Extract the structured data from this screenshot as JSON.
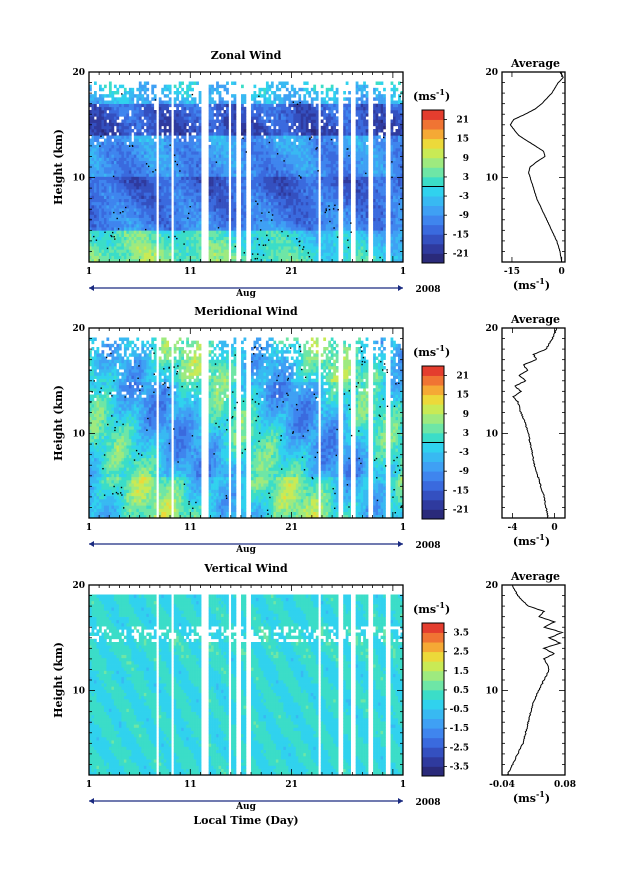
{
  "figure": {
    "xlabel": "Local Time (Day)",
    "month_label": "Aug",
    "year_label": "2008",
    "x_ticks": [
      "1",
      "11",
      "21",
      "1"
    ],
    "y_label": "Height (km)",
    "y_ticks": [
      "20",
      "10"
    ],
    "unit_label": "(ms",
    "unit_exp": "-1",
    "unit_close": ")",
    "avg_title": "Average"
  },
  "chart_data": [
    {
      "type": "heatmap",
      "title": "Zonal Wind",
      "ylabel": "Height (km)",
      "x_range_days": [
        1,
        32
      ],
      "ylim": [
        2,
        20
      ],
      "colorbar": {
        "ticks": [
          "21",
          "15",
          "9",
          "3",
          "-3",
          "-9",
          "-15",
          "-21"
        ],
        "range": [
          -24,
          24
        ]
      },
      "profile": {
        "title": "Average",
        "xlim": [
          -18,
          1
        ],
        "xticks": [
          "-15",
          "0"
        ],
        "heights": [
          2,
          3,
          4,
          5,
          6,
          7,
          8,
          9,
          10,
          10.5,
          11,
          11.5,
          12,
          12.5,
          13,
          13.5,
          14,
          15,
          15.5,
          16,
          16.5,
          17,
          18,
          19,
          19.5,
          20
        ],
        "values": [
          0,
          -0.5,
          -1.5,
          -3,
          -4.5,
          -6,
          -7.5,
          -8.5,
          -9.5,
          -10,
          -9.5,
          -7.5,
          -5,
          -5.5,
          -8,
          -10.5,
          -13,
          -15.5,
          -14.5,
          -11,
          -8,
          -6,
          -3,
          -1,
          0.5,
          -0.5
        ]
      }
    },
    {
      "type": "heatmap",
      "title": "Meridional Wind",
      "ylabel": "Height (km)",
      "x_range_days": [
        1,
        32
      ],
      "ylim": [
        2,
        20
      ],
      "colorbar": {
        "ticks": [
          "21",
          "15",
          "9",
          "3",
          "-3",
          "-9",
          "-15",
          "-21"
        ],
        "range": [
          -24,
          24
        ]
      },
      "profile": {
        "title": "Average",
        "xlim": [
          -5,
          1
        ],
        "xticks": [
          "-4",
          "0"
        ],
        "heights": [
          2,
          3,
          4,
          5,
          6,
          7,
          8,
          9,
          10,
          11,
          12,
          13,
          13.5,
          14,
          14.5,
          15,
          15.5,
          16,
          16.5,
          17,
          17.5,
          18,
          19,
          20
        ],
        "values": [
          -0.6,
          -0.8,
          -1.0,
          -1.3,
          -1.6,
          -1.9,
          -2.1,
          -2.3,
          -2.5,
          -2.8,
          -3.2,
          -3.5,
          -3.9,
          -3.2,
          -3.8,
          -2.7,
          -3.4,
          -2.5,
          -3.0,
          -1.7,
          -2.0,
          -0.8,
          -0.2,
          0.2
        ]
      }
    },
    {
      "type": "heatmap",
      "title": "Vertical Wind",
      "ylabel": "Height (km)",
      "xlabel": "Local Time (Day)",
      "x_range_days": [
        1,
        32
      ],
      "ylim": [
        2,
        20
      ],
      "colorbar": {
        "ticks": [
          "3.5",
          "2.5",
          "1.5",
          "0.5",
          "-0.5",
          "-1.5",
          "-2.5",
          "-3.5"
        ],
        "range": [
          -4,
          4
        ]
      },
      "profile": {
        "title": "Average",
        "xlim": [
          -0.04,
          0.08
        ],
        "xticks": [
          "-0.04",
          "0.08"
        ],
        "heights": [
          2,
          3,
          4,
          5,
          6,
          7,
          8,
          9,
          10,
          11,
          12,
          13,
          13.5,
          14,
          14.5,
          15,
          15.5,
          16,
          16.5,
          17,
          17.5,
          18,
          19,
          20
        ],
        "values": [
          -0.03,
          -0.02,
          -0.01,
          0.0,
          0.005,
          0.01,
          0.015,
          0.02,
          0.03,
          0.04,
          0.05,
          0.04,
          0.06,
          0.04,
          0.07,
          0.05,
          0.075,
          0.04,
          0.06,
          0.03,
          0.04,
          0.01,
          -0.01,
          -0.02
        ]
      }
    }
  ]
}
